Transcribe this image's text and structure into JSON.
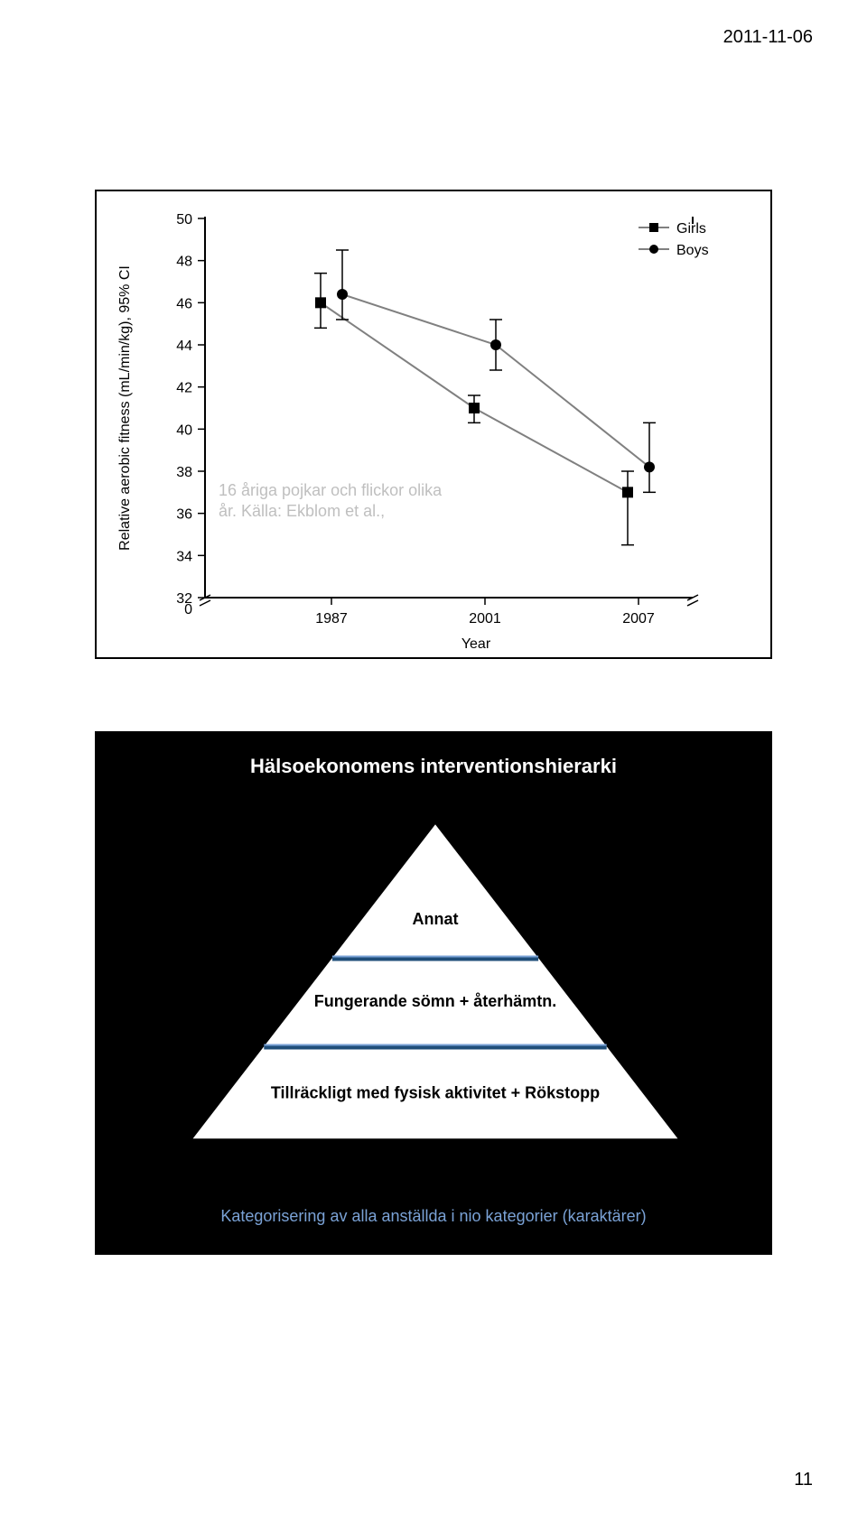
{
  "header": {
    "date": "2011-11-06"
  },
  "chart": {
    "type": "line-errorbar",
    "ylabel": "Relative aerobic fitness (mL/min/kg), 95% CI",
    "xlabel": "Year",
    "x_categories": [
      "1987",
      "2001",
      "2007"
    ],
    "ylim": [
      32,
      50
    ],
    "ytick_step": 2,
    "y_break": true,
    "label_fontsize": 16,
    "tick_fontsize": 16,
    "series": [
      {
        "name": "Girls",
        "marker": "square",
        "color": "#000000",
        "values": [
          46,
          41,
          37
        ],
        "err_low": [
          44.8,
          40.3,
          34.5
        ],
        "err_high": [
          47.4,
          41.6,
          38
        ]
      },
      {
        "name": "Boys",
        "marker": "circle",
        "color": "#000000",
        "values": [
          46.4,
          44,
          38.2
        ],
        "err_low": [
          45.2,
          42.8,
          37
        ],
        "err_high": [
          48.5,
          45.2,
          40.3
        ]
      }
    ],
    "line_color": "#808080",
    "line_width": 2,
    "errorbar_width": 1.5,
    "annotation": "16 åriga pojkar och flickor olika år. Källa: Ekblom et al.,",
    "annotation_color": "#bfbfbf",
    "legend_items": [
      "Girls",
      "Boys"
    ]
  },
  "pyramid": {
    "title": "Hälsoekonomens interventionshierarki",
    "levels": [
      {
        "label": "Annat",
        "fontweight": "bold"
      },
      {
        "label": "Fungerande sömn + återhämtn.",
        "fontweight": "bold"
      },
      {
        "label": "Tillräckligt med fysisk aktivitet  + Rökstopp",
        "fontweight": "bold"
      }
    ],
    "fill_color": "#ffffff",
    "stroke_color": "#000000",
    "divider_colors": [
      "#1f4e79",
      "#1f4e79"
    ],
    "divider_accent": "#7aa2d6",
    "caption": "Kategorisering av alla anställda i nio kategorier (karaktärer)",
    "caption_color": "#7aa2d6"
  },
  "footer": {
    "page": "11"
  }
}
